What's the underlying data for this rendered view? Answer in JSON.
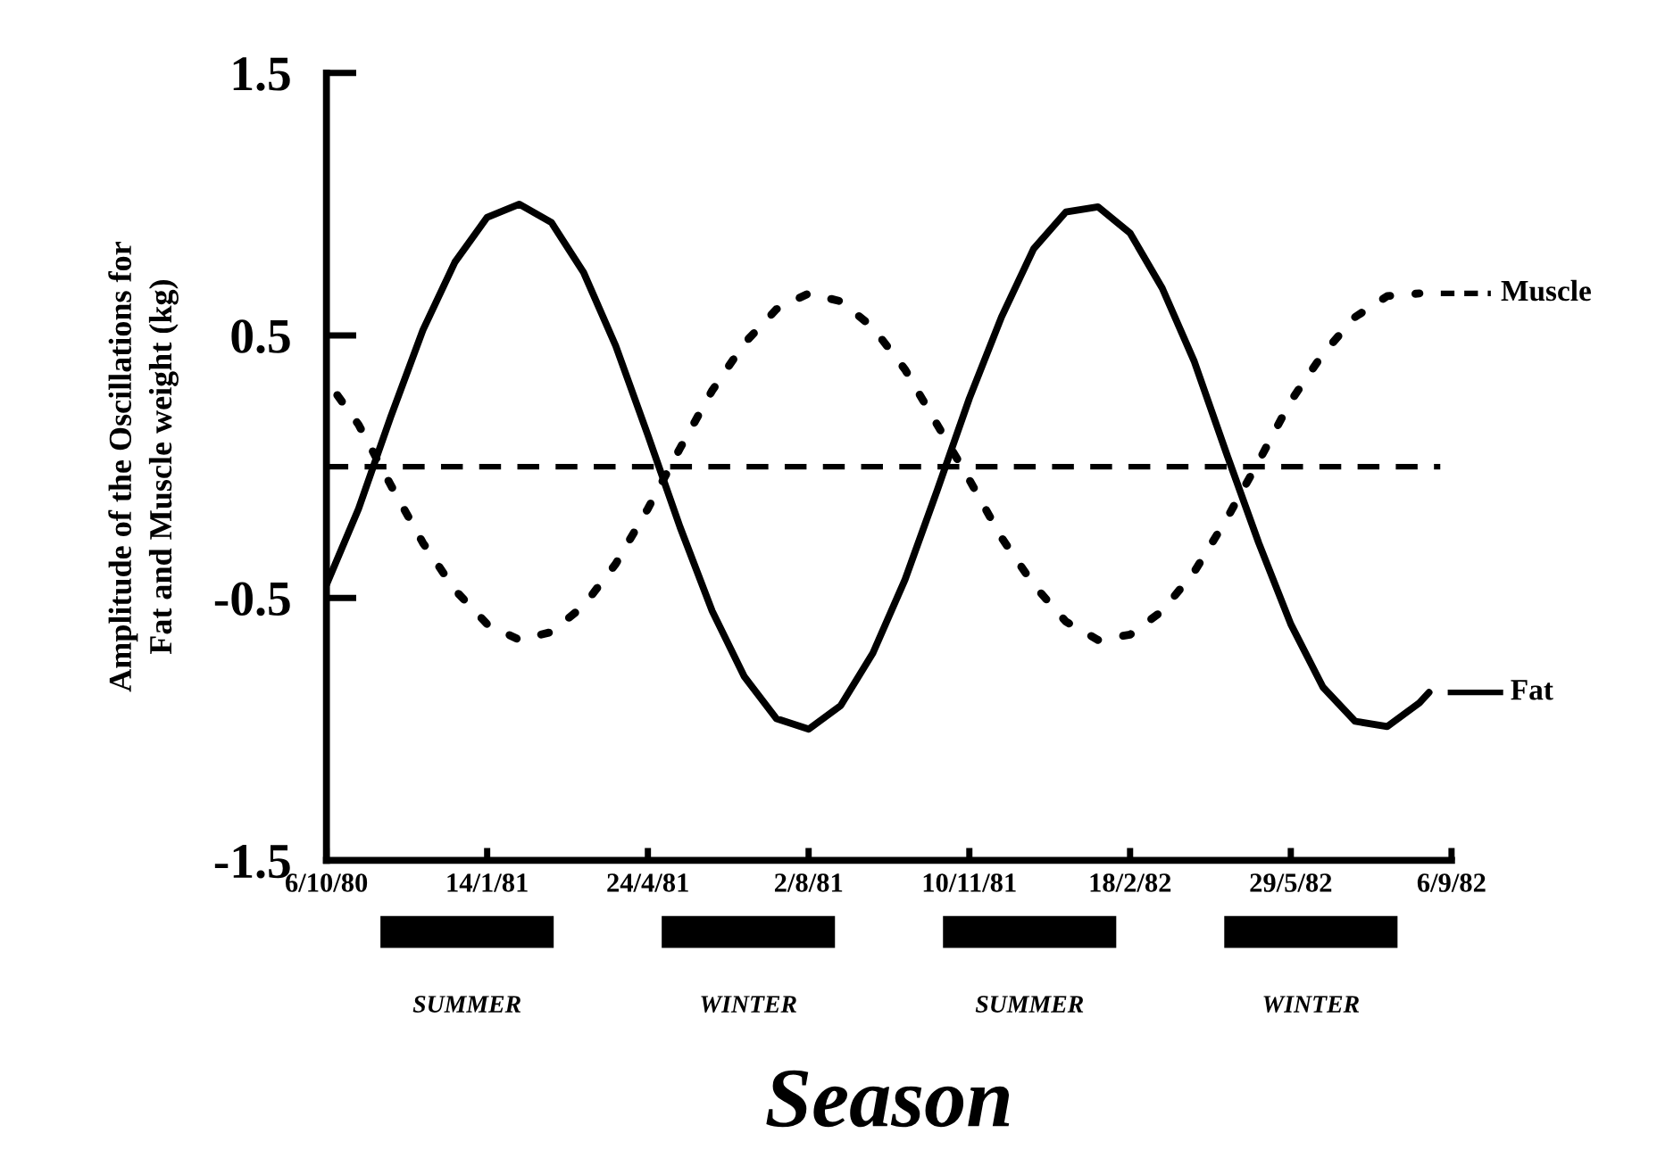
{
  "chart_data": {
    "type": "line",
    "xlabel": "Season",
    "ylabel": "Amplitude of the Oscillations for\nFat and Muscle weight (kg)",
    "x": [
      "1980-10-06",
      "1980-10-26",
      "1980-11-15",
      "1980-12-05",
      "1980-12-25",
      "1981-01-14",
      "1981-02-03",
      "1981-02-23",
      "1981-03-15",
      "1981-04-04",
      "1981-04-24",
      "1981-05-14",
      "1981-06-03",
      "1981-06-23",
      "1981-07-13",
      "1981-08-02",
      "1981-08-22",
      "1981-09-11",
      "1981-10-01",
      "1981-10-21",
      "1981-11-10",
      "1981-11-30",
      "1981-12-20",
      "1982-01-09",
      "1982-01-29",
      "1982-02-18",
      "1982-03-10",
      "1982-03-30",
      "1982-04-19",
      "1982-05-09",
      "1982-05-29",
      "1982-06-18",
      "1982-07-08",
      "1982-07-28",
      "1982-08-17"
    ],
    "series": [
      {
        "name": "Muscle",
        "color": "#000000",
        "line_style": "dotted",
        "values": [
          0.33,
          0.16,
          -0.07,
          -0.29,
          -0.47,
          -0.6,
          -0.66,
          -0.63,
          -0.53,
          -0.37,
          -0.16,
          0.07,
          0.29,
          0.47,
          0.6,
          0.66,
          0.63,
          0.53,
          0.37,
          0.16,
          -0.05,
          -0.27,
          -0.45,
          -0.59,
          -0.66,
          -0.64,
          -0.55,
          -0.4,
          -0.2,
          0.02,
          0.25,
          0.43,
          0.57,
          0.65,
          0.66
        ]
      },
      {
        "name": "Fat",
        "color": "#000000",
        "line_style": "solid",
        "x": [
          "1980-10-06",
          "1980-10-26",
          "1980-11-15",
          "1980-12-05",
          "1980-12-25",
          "1981-01-14",
          "1981-02-03",
          "1981-02-23",
          "1981-03-15",
          "1981-04-04",
          "1981-04-24",
          "1981-05-14",
          "1981-06-03",
          "1981-06-23",
          "1981-07-13",
          "1981-08-02",
          "1981-08-22",
          "1981-09-11",
          "1981-10-01",
          "1981-10-21",
          "1981-11-10",
          "1981-11-30",
          "1981-12-20",
          "1982-01-09",
          "1982-01-29",
          "1982-02-18",
          "1982-03-10",
          "1982-03-30",
          "1982-04-19",
          "1982-05-09",
          "1982-05-29",
          "1982-06-18",
          "1982-07-08",
          "1982-07-28",
          "1982-08-17",
          "1982-08-23"
        ],
        "values": [
          -0.45,
          -0.16,
          0.19,
          0.52,
          0.78,
          0.95,
          1.0,
          0.93,
          0.74,
          0.46,
          0.12,
          -0.23,
          -0.55,
          -0.8,
          -0.96,
          -1.0,
          -0.91,
          -0.71,
          -0.43,
          -0.09,
          0.26,
          0.57,
          0.83,
          0.97,
          0.99,
          0.89,
          0.68,
          0.4,
          0.05,
          -0.29,
          -0.6,
          -0.84,
          -0.97,
          -0.99,
          -0.9,
          -0.86
        ]
      }
    ],
    "xlim": [
      "1980-10-06",
      "1982-09-06"
    ],
    "xticks": [
      {
        "value": "1980-10-06",
        "label": "6/10/80"
      },
      {
        "value": "1981-01-14",
        "label": "14/1/81"
      },
      {
        "value": "1981-04-24",
        "label": "24/4/81"
      },
      {
        "value": "1981-08-02",
        "label": "2/8/81"
      },
      {
        "value": "1981-11-10",
        "label": "10/11/81"
      },
      {
        "value": "1982-02-18",
        "label": "18/2/82"
      },
      {
        "value": "1982-05-29",
        "label": "29/5/82"
      },
      {
        "value": "1982-09-06",
        "label": "6/9/82"
      }
    ],
    "ylim": [
      -1.5,
      1.5
    ],
    "yticks": [
      -1.5,
      -0.5,
      0.5,
      1.5
    ],
    "ref_lines": [
      {
        "axis": "y",
        "value": 0,
        "line_style": "dashed",
        "color": "#000000"
      }
    ],
    "annotations": [
      "SUMMER",
      "WINTER",
      "SUMMER",
      "WINTER"
    ],
    "legend": "right",
    "grid": false,
    "marker": "none"
  }
}
